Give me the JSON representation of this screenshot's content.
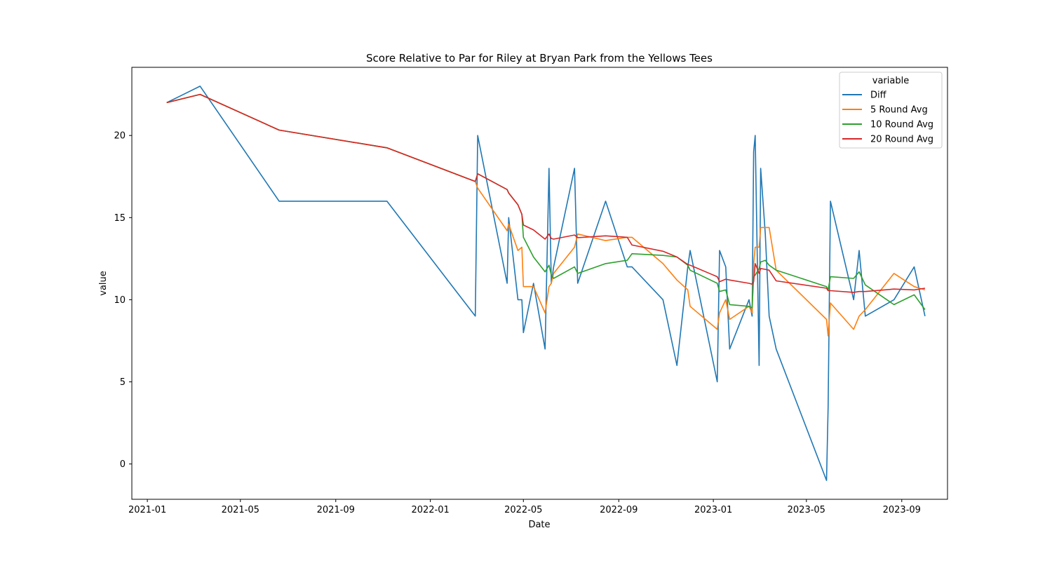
{
  "chart_data": {
    "type": "line",
    "title": "Score Relative to Par for Riley at Bryan Park from the Yellows Tees",
    "xlabel": "Date",
    "ylabel": "value",
    "xlim": [
      "2020-12-12",
      "2023-10-30"
    ],
    "ylim": [
      -2.15,
      24.15
    ],
    "x_ticks": [
      "2021-01",
      "2021-05",
      "2021-09",
      "2022-01",
      "2022-05",
      "2022-09",
      "2023-01",
      "2023-05",
      "2023-09"
    ],
    "y_ticks": [
      0,
      5,
      10,
      15,
      20
    ],
    "grid": false,
    "legend": {
      "title": "variable",
      "position": "top-right"
    },
    "dates": [
      "2021-01-26",
      "2021-03-10",
      "2021-06-20",
      "2021-11-06",
      "2022-02-28",
      "2022-03-03",
      "2022-04-10",
      "2022-04-12",
      "2022-04-24",
      "2022-04-29",
      "2022-05-01",
      "2022-05-14",
      "2022-05-29",
      "2022-06-03",
      "2022-06-06",
      "2022-06-09",
      "2022-07-06",
      "2022-07-10",
      "2022-08-15",
      "2022-09-12",
      "2022-09-18",
      "2022-10-28",
      "2022-11-15",
      "2022-11-29",
      "2022-12-02",
      "2023-01-06",
      "2023-01-09",
      "2023-01-17",
      "2023-01-22",
      "2023-02-16",
      "2023-02-20",
      "2023-02-22",
      "2023-02-24",
      "2023-03-01",
      "2023-03-03",
      "2023-03-09",
      "2023-03-14",
      "2023-03-23",
      "2023-05-27",
      "2023-05-29",
      "2023-06-01",
      "2023-07-01",
      "2023-07-08",
      "2023-07-16",
      "2023-08-22",
      "2023-09-17",
      "2023-10-01"
    ],
    "series": [
      {
        "name": "Diff",
        "color": "#1f77b4",
        "values": [
          22,
          23,
          16,
          16,
          9,
          20,
          11,
          15,
          10,
          10,
          8,
          11,
          7,
          18,
          11,
          12,
          18,
          11,
          16,
          12,
          12,
          10,
          6,
          12,
          13,
          5,
          13,
          12,
          7,
          10,
          9,
          19,
          20,
          6,
          18,
          14,
          9,
          7,
          -1,
          3.5,
          16,
          10,
          13,
          9,
          10,
          12,
          9
        ]
      },
      {
        "name": "5 Round Avg",
        "color": "#ff7f0e",
        "values": [
          22,
          22.5,
          20.33,
          19.25,
          17.2,
          16.8,
          14.2,
          14.6,
          13,
          13.2,
          10.8,
          10.8,
          9.2,
          10.8,
          11,
          11.6,
          13.2,
          14,
          13.6,
          13.8,
          13.8,
          12.2,
          11.2,
          10.6,
          9.6,
          8.2,
          9.2,
          10,
          8.8,
          9.6,
          9.2,
          12.2,
          13.2,
          13.2,
          14.4,
          14.4,
          14.4,
          11.8,
          8.8,
          7.8,
          9.8,
          8.2,
          9,
          9.4,
          11.6,
          10.8,
          10.6
        ]
      },
      {
        "name": "10 Round Avg",
        "color": "#2ca02c",
        "values": [
          22,
          22.5,
          20.33,
          19.25,
          17.2,
          17.67,
          16.71,
          16.5,
          15.78,
          15.2,
          13.8,
          12.6,
          11.7,
          12.1,
          11.5,
          11.3,
          12,
          11.6,
          12.2,
          12.4,
          12.8,
          12.7,
          12.6,
          12.1,
          11.8,
          11,
          10.5,
          10.6,
          9.7,
          9.6,
          9.5,
          11.4,
          11.5,
          11.9,
          12.3,
          12.4,
          12.1,
          11.8,
          10.8,
          10.6,
          11.4,
          11.3,
          11.7,
          10.9,
          9.7,
          10.3,
          9.4
        ]
      },
      {
        "name": "20 Round Avg",
        "color": "#d62728",
        "values": [
          22,
          22.5,
          20.33,
          19.25,
          17.2,
          17.67,
          16.71,
          16.5,
          15.78,
          15.2,
          14.55,
          14.25,
          13.69,
          14,
          13.73,
          13.69,
          13.94,
          13.78,
          13.89,
          13.8,
          13.33,
          12.95,
          12.6,
          12.15,
          12.1,
          11.4,
          11.1,
          11.25,
          11.2,
          11,
          10.95,
          11.1,
          12.2,
          11.6,
          11.9,
          11.85,
          11.8,
          11.15,
          10.7,
          10.55,
          10.55,
          10.45,
          10.5,
          10.5,
          10.65,
          10.6,
          10.7
        ]
      }
    ]
  }
}
